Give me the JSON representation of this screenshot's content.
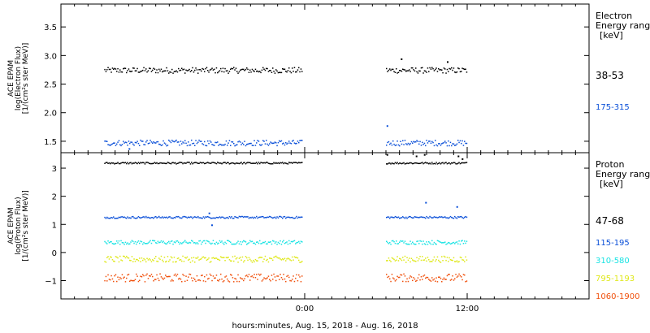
{
  "footer": {
    "xlabel": "hours:minutes, Aug. 15, 2018 - Aug. 16, 2018"
  },
  "chart_data": [
    {
      "type": "scatter",
      "panel": "electron",
      "ylabel_lines": [
        "ACE EPAM",
        "log(Electron Flux)",
        "[1/(cm²s ster MeV)]"
      ],
      "ylim": [
        1.3,
        3.9
      ],
      "yticks": [
        1.5,
        2.0,
        2.5,
        3.0,
        3.5
      ],
      "ytick_labels": [
        "1.5",
        "2.0",
        "2.5",
        "3.0",
        "3.5"
      ],
      "xlim_hours": [
        -18,
        21
      ],
      "legend_title_lines": [
        "Electron",
        "Energy ranges",
        "[keV]"
      ],
      "gaps_hours": [
        [
          0,
          6
        ]
      ],
      "series": [
        {
          "name": "38-53",
          "color": "#000000",
          "level": 2.75,
          "spread": 0.1,
          "outliers": [
            [
              7.1,
              2.95
            ],
            [
              10.5,
              2.9
            ]
          ]
        },
        {
          "name": "175-315",
          "color": "#0a4fd8",
          "level": 1.48,
          "spread": 0.1,
          "outliers": [
            [
              6.05,
              1.78
            ],
            [
              -13.0,
              1.38
            ]
          ]
        }
      ]
    },
    {
      "type": "scatter",
      "panel": "proton",
      "ylabel_lines": [
        "ACE EPAM",
        "log(Proton Flux)",
        "[1/(cm²s ster MeV)]"
      ],
      "ylim": [
        -1.65,
        3.55
      ],
      "yticks": [
        -1,
        0,
        1,
        2,
        3
      ],
      "ytick_labels": [
        "−1",
        "0",
        "1",
        "2",
        "3"
      ],
      "xlim_hours": [
        -18,
        21
      ],
      "legend_title_lines": [
        "Proton",
        "Energy ranges",
        "[keV]"
      ],
      "gaps_hours": [
        [
          0,
          6
        ]
      ],
      "series": [
        {
          "name": "47-68",
          "color": "#000000",
          "level": 3.2,
          "spread": 0.06,
          "outliers": [
            [
              6.05,
              3.5
            ],
            [
              8.2,
              3.45
            ],
            [
              8.8,
              3.5
            ],
            [
              11.3,
              3.45
            ],
            [
              11.6,
              3.35
            ]
          ]
        },
        {
          "name": "115-195",
          "color": "#0a4fd8",
          "level": 1.27,
          "spread": 0.07,
          "outliers": [
            [
              -7.1,
              1.42
            ],
            [
              -6.9,
              1.0
            ],
            [
              8.9,
              1.8
            ],
            [
              11.2,
              1.65
            ]
          ]
        },
        {
          "name": "310-580",
          "color": "#19e3e3",
          "level": 0.38,
          "spread": 0.14
        },
        {
          "name": "795-1193",
          "color": "#dfe81a",
          "level": -0.22,
          "spread": 0.22
        },
        {
          "name": "1060-1900",
          "color": "#f0500c",
          "level": -0.88,
          "spread": 0.28
        }
      ]
    }
  ],
  "xaxis": {
    "ticks_hours": [
      0,
      12
    ],
    "tick_labels": [
      "0:00",
      "12:00"
    ],
    "minor_step_hours": 1
  },
  "colors": {
    "axis": "#000000",
    "background": "#ffffff"
  }
}
